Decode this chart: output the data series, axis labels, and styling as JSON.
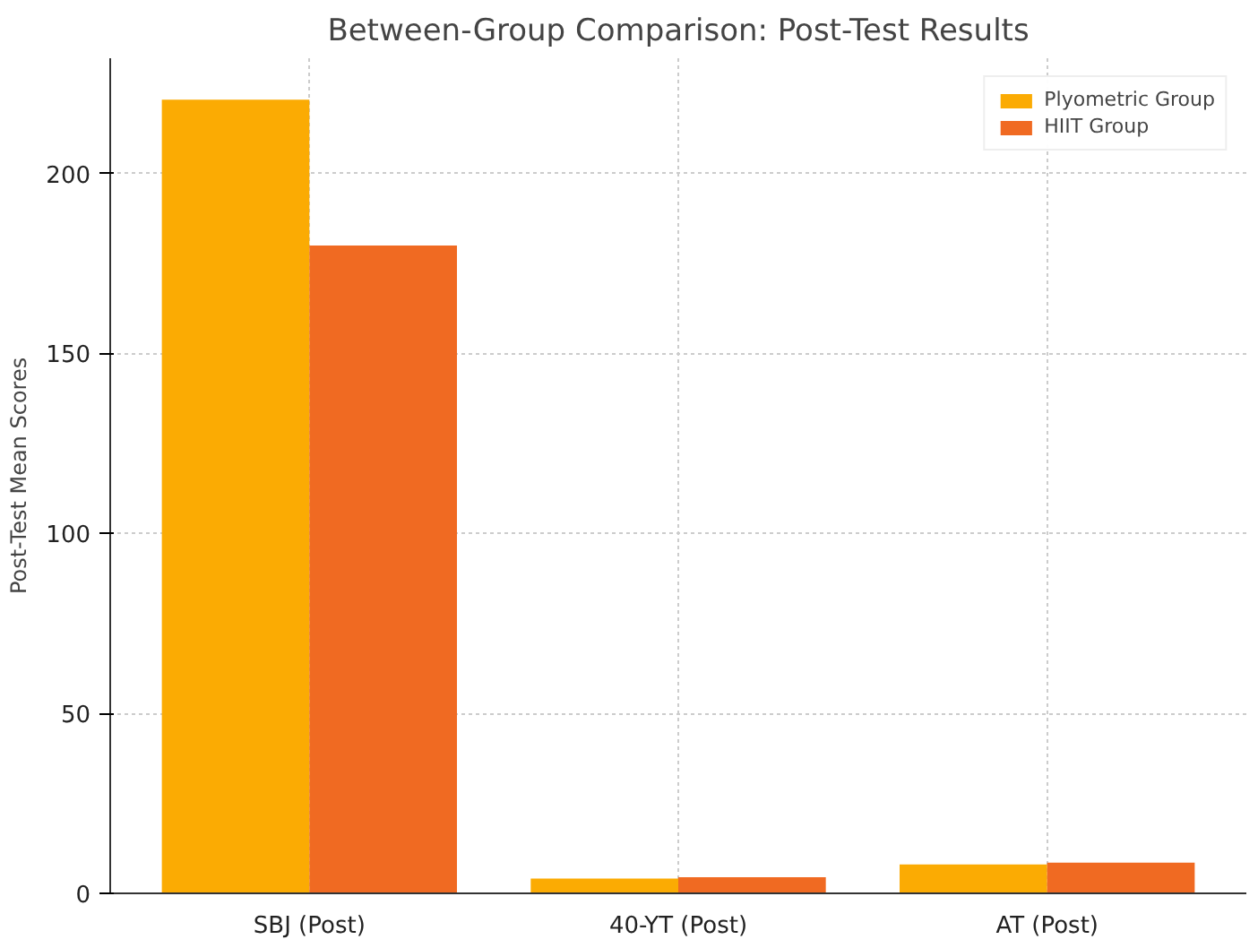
{
  "chart_data": {
    "type": "bar",
    "title": "Between-Group Comparison: Post-Test Results",
    "ylabel": "Post-Test Mean Scores",
    "categories": [
      "SBJ (Post)",
      "40-YT (Post)",
      "AT (Post)"
    ],
    "series": [
      {
        "name": "Plyometric Group",
        "color": "#fbab03",
        "values": [
          220.5,
          4.1,
          8
        ]
      },
      {
        "name": "HIIT Group",
        "color": "#f06a22",
        "values": [
          180,
          4.5,
          8.5
        ]
      }
    ],
    "ylim": [
      0,
      232
    ],
    "yticks": [
      0,
      50,
      100,
      150,
      200
    ],
    "grid": true,
    "legend": "top right"
  }
}
